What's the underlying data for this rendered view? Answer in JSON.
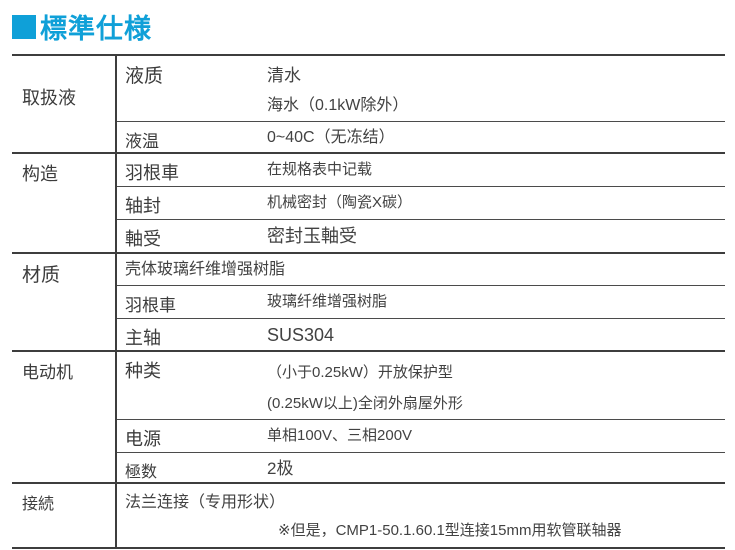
{
  "title": {
    "text": "標準仕様"
  },
  "colors": {
    "accent": "#0fa0d8",
    "border_heavy": "#3d3d3d",
    "border_light": "#4b4b4b",
    "text": "#3c3c3c"
  },
  "table": {
    "sections": [
      {
        "label": "取扱液",
        "rows": [
          {
            "sublabel": "液质",
            "lines": [
              "清水",
              "海水（0.1kW除外）"
            ]
          },
          {
            "sublabel": "液温",
            "lines": [
              "0~40C（无冻结）"
            ]
          }
        ]
      },
      {
        "label": "构造",
        "rows": [
          {
            "sublabel": "羽根車",
            "lines": [
              "在规格表中记载"
            ]
          },
          {
            "sublabel": "轴封",
            "lines": [
              "机械密封（陶瓷X碳）"
            ]
          },
          {
            "sublabel": "軸受",
            "lines": [
              "密封玉軸受"
            ]
          }
        ]
      },
      {
        "label": "材质",
        "rows": [
          {
            "sublabel": "",
            "lines": [
              "壳体玻璃纤维增强树脂"
            ]
          },
          {
            "sublabel": "羽根車",
            "lines": [
              "玻璃纤维增强树脂"
            ]
          },
          {
            "sublabel": "主轴",
            "lines": [
              "SUS304"
            ]
          }
        ]
      },
      {
        "label": "电动机",
        "rows": [
          {
            "sublabel": "种类",
            "lines": [
              "（小于0.25kW）开放保护型",
              "(0.25kW以上)全闭外扇屋外形"
            ]
          },
          {
            "sublabel": "电源",
            "lines": [
              "单相100V、三相200V"
            ]
          },
          {
            "sublabel": "極数",
            "lines": [
              "2极"
            ]
          }
        ]
      },
      {
        "label": "接続",
        "rows": [
          {
            "sublabel": "",
            "lines": [
              "法兰连接（专用形状）",
              "※但是，CMP1-50.1.60.1型连接15mm用软管联轴器"
            ]
          }
        ]
      }
    ]
  }
}
